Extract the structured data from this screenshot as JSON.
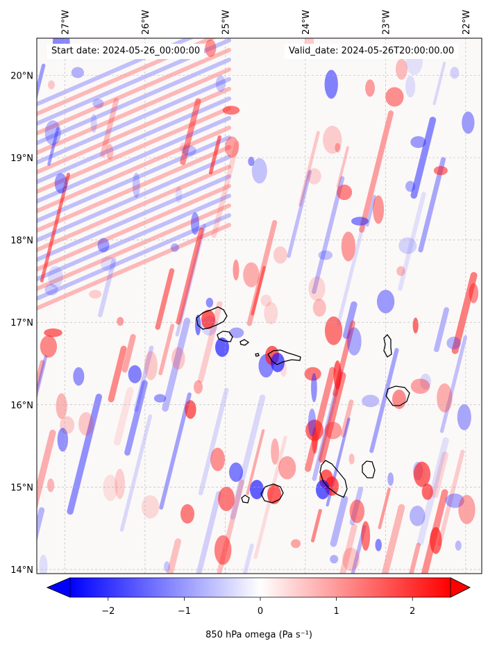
{
  "map": {
    "start_date_text": "Start date: 2024-05-26_00:00:00",
    "valid_date_text": "Valid_date: 2024-05-26T20:00:00.00",
    "lon_ticks": [
      "27°W",
      "26°W",
      "25°W",
      "24°W",
      "23°W",
      "22°W"
    ],
    "lat_ticks": [
      "20°N",
      "19°N",
      "18°N",
      "17°N",
      "16°N",
      "15°N",
      "14°N"
    ],
    "lon_values": [
      -27,
      -26,
      -25,
      -24,
      -23,
      -22
    ],
    "lat_values": [
      20,
      19,
      18,
      17,
      16,
      15,
      14
    ],
    "extent": {
      "lon_min": -27.35,
      "lon_max": -21.8,
      "lat_min": 13.95,
      "lat_max": 20.45
    }
  },
  "colorbar": {
    "label": "850 hPa omega (Pa s⁻¹)",
    "tick_labels": [
      "−2",
      "−1",
      "0",
      "1",
      "2"
    ],
    "tick_values": [
      -2,
      -1,
      0,
      1,
      2
    ],
    "vmin": -2.5,
    "vmax": 2.5,
    "cmap_low": "#0000ff",
    "cmap_mid": "#ffffff",
    "cmap_high": "#ff0000",
    "extend": "both"
  },
  "colors": {
    "coastline": "#000000",
    "grid": "#b0b0b0"
  }
}
